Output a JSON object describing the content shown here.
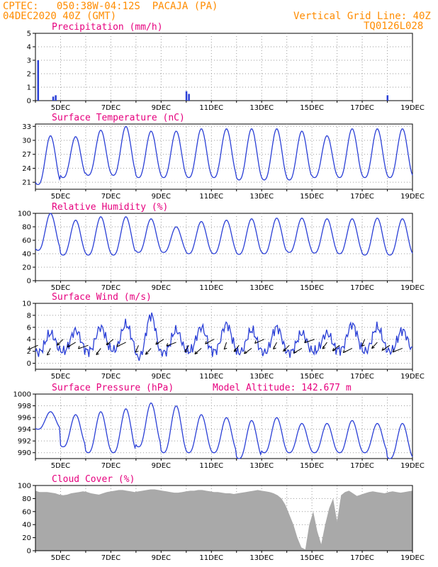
{
  "header": {
    "station": "CPTEC:   050:38W-04:12S  PACAJA (PA)",
    "date": "04DEC2020 40Z (GMT)",
    "grid_note": "Vertical Grid Line: 40Z",
    "code": "TQ0126L028"
  },
  "colors": {
    "header": "#ff8c00",
    "title": "#e6007e",
    "line": "#2a3fd6",
    "cloud": "#a9a9a9"
  },
  "date_labels": [
    "5DEC",
    "7DEC",
    "9DEC",
    "11DEC",
    "13DEC",
    "15DEC",
    "17DEC",
    "19DEC"
  ],
  "chart_data": [
    {
      "type": "bar",
      "title": "Precipitation (mm/h)",
      "ylim": [
        0,
        5
      ],
      "yticks": [
        0,
        1,
        2,
        3,
        4,
        5
      ],
      "x_days": [
        4.1,
        4.7,
        4.8,
        10.0,
        10.1,
        18.0
      ],
      "values": [
        3.0,
        0.3,
        0.4,
        0.7,
        0.5,
        0.4
      ]
    },
    {
      "type": "line",
      "title": "Surface Temperature (nC)",
      "ylim": [
        19.5,
        33.5
      ],
      "yticks": [
        21,
        24,
        27,
        30,
        33
      ],
      "daily_min": [
        20.5,
        22,
        22.5,
        22.5,
        22,
        22,
        22,
        22,
        21.5,
        21.5,
        21.5,
        22,
        22,
        22,
        22
      ],
      "daily_max": [
        31,
        30.8,
        32.2,
        33,
        32,
        32,
        32.5,
        32.5,
        32.5,
        32.5,
        32,
        31,
        32.5,
        32.5,
        32.5
      ]
    },
    {
      "type": "line",
      "title": "Relative Humidity (%)",
      "ylim": [
        0,
        100
      ],
      "yticks": [
        0,
        20,
        40,
        60,
        80,
        100
      ],
      "daily_min": [
        45,
        38,
        38,
        38,
        42,
        42,
        40,
        40,
        39,
        40,
        42,
        41,
        40,
        38,
        38
      ],
      "daily_max": [
        100,
        90,
        95,
        95,
        92,
        80,
        88,
        90,
        92,
        93,
        93,
        92,
        92,
        93,
        92
      ]
    },
    {
      "type": "line",
      "title": "Surface Wind (m/s)",
      "ylim": [
        -1,
        10
      ],
      "yticks": [
        0,
        2,
        4,
        6,
        8,
        10
      ],
      "daily_min": [
        1.8,
        2.0,
        2.0,
        2.2,
        1.0,
        1.8,
        2.0,
        2.0,
        1.8,
        1.8,
        1.8,
        2.0,
        2.2,
        2.0,
        2.0
      ],
      "daily_max": [
        5.0,
        5.5,
        6.0,
        6.5,
        8.0,
        5.5,
        6.0,
        6.5,
        5.5,
        6.0,
        5.0,
        5.0,
        6.5,
        6.0,
        5.5
      ]
    },
    {
      "type": "line",
      "title": "Surface Pressure (hPa)",
      "annotation": "Model Altitude: 142.677 m",
      "ylim": [
        989,
        1000
      ],
      "yticks": [
        990,
        992,
        994,
        996,
        998,
        1000
      ],
      "daily_min": [
        994,
        991,
        990,
        990,
        991,
        990,
        990,
        990,
        989,
        990,
        990,
        990,
        990,
        990,
        989
      ],
      "daily_max": [
        997,
        996.5,
        997,
        997.5,
        998.5,
        998,
        996.5,
        996,
        995.5,
        996,
        995,
        995,
        995.5,
        995,
        995
      ]
    },
    {
      "type": "area",
      "title": "Cloud Cover (%)",
      "ylim": [
        0,
        100
      ],
      "yticks": [
        0,
        20,
        40,
        60,
        80,
        100
      ],
      "samples": [
        92,
        90,
        90,
        90,
        89,
        88,
        86,
        85,
        86,
        88,
        89,
        90,
        91,
        90,
        88,
        87,
        86,
        88,
        90,
        91,
        92,
        93,
        93,
        92,
        91,
        90,
        91,
        92,
        93,
        94,
        94,
        93,
        92,
        91,
        90,
        89,
        89,
        90,
        91,
        92,
        92,
        93,
        93,
        92,
        91,
        90,
        90,
        89,
        88,
        88,
        87,
        88,
        89,
        90,
        91,
        92,
        93,
        92,
        91,
        90,
        88,
        85,
        80,
        70,
        55,
        40,
        20,
        5,
        2,
        40,
        60,
        30,
        10,
        40,
        65,
        80,
        45,
        85,
        90,
        92,
        88,
        84,
        86,
        88,
        90,
        91,
        90,
        89,
        88,
        90,
        91,
        90,
        89,
        90,
        91,
        92
      ]
    }
  ]
}
